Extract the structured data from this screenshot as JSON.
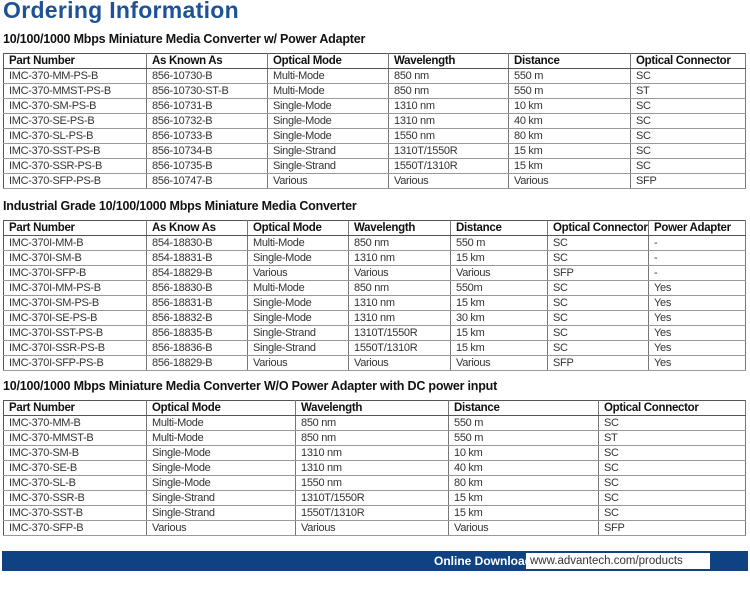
{
  "title": "Ordering Information",
  "tables": [
    {
      "heading": "10/100/1000 Mbps Miniature Media Converter w/ Power Adapter",
      "headers": [
        "Part Number",
        "As Known As",
        "Optical Mode",
        "Wavelength",
        "Distance",
        "Optical Connector"
      ],
      "rows": [
        [
          "IMC-370-MM-PS-B",
          "856-10730-B",
          "Multi-Mode",
          "850 nm",
          "550 m",
          "SC"
        ],
        [
          "IMC-370-MMST-PS-B",
          "856-10730-ST-B",
          "Multi-Mode",
          "850 nm",
          "550 m",
          "ST"
        ],
        [
          "IMC-370-SM-PS-B",
          "856-10731-B",
          "Single-Mode",
          "1310 nm",
          "10 km",
          "SC"
        ],
        [
          "IMC-370-SE-PS-B",
          "856-10732-B",
          "Single-Mode",
          "1310 nm",
          "40 km",
          "SC"
        ],
        [
          "IMC-370-SL-PS-B",
          "856-10733-B",
          "Single-Mode",
          "1550 nm",
          "80 km",
          "SC"
        ],
        [
          "IMC-370-SST-PS-B",
          "856-10734-B",
          "Single-Strand",
          "1310T/1550R",
          "15 km",
          "SC"
        ],
        [
          "IMC-370-SSR-PS-B",
          "856-10735-B",
          "Single-Strand",
          "1550T/1310R",
          "15 km",
          "SC"
        ],
        [
          "IMC-370-SFP-PS-B",
          "856-10747-B",
          "Various",
          "Various",
          "Various",
          "SFP"
        ]
      ]
    },
    {
      "heading": "Industrial Grade 10/100/1000 Mbps Miniature Media Converter",
      "headers": [
        "Part Number",
        "As Know As",
        "Optical Mode",
        "Wavelength",
        "Distance",
        "Optical Connector",
        "Power Adapter"
      ],
      "rows": [
        [
          "IMC-370I-MM-B",
          "854-18830-B",
          "Multi-Mode",
          "850 nm",
          "550 m",
          "SC",
          "-"
        ],
        [
          "IMC-370I-SM-B",
          "854-18831-B",
          "Single-Mode",
          "1310 nm",
          "15 km",
          "SC",
          "-"
        ],
        [
          "IMC-370I-SFP-B",
          "854-18829-B",
          "Various",
          "Various",
          "Various",
          "SFP",
          "-"
        ],
        [
          "IMC-370I-MM-PS-B",
          "856-18830-B",
          "Multi-Mode",
          "850 nm",
          "550m",
          "SC",
          "Yes"
        ],
        [
          "IMC-370I-SM-PS-B",
          "856-18831-B",
          "Single-Mode",
          "1310 nm",
          "15 km",
          "SC",
          "Yes"
        ],
        [
          "IMC-370I-SE-PS-B",
          "856-18832-B",
          "Single-Mode",
          "1310 nm",
          "30 km",
          "SC",
          "Yes"
        ],
        [
          "IMC-370I-SST-PS-B",
          "856-18835-B",
          "Single-Strand",
          "1310T/1550R",
          "15 km",
          "SC",
          "Yes"
        ],
        [
          "IMC-370I-SSR-PS-B",
          "856-18836-B",
          "Single-Strand",
          "1550T/1310R",
          "15 km",
          "SC",
          "Yes"
        ],
        [
          "IMC-370I-SFP-PS-B",
          "856-18829-B",
          "Various",
          "Various",
          "Various",
          "SFP",
          "Yes"
        ]
      ]
    },
    {
      "heading": "10/100/1000 Mbps Miniature Media Converter W/O Power Adapter with DC power input",
      "headers": [
        "Part Number",
        "Optical Mode",
        "Wavelength",
        "Distance",
        "Optical Connector"
      ],
      "rows": [
        [
          "IMC-370-MM-B",
          "Multi-Mode",
          "850 nm",
          "550 m",
          "SC"
        ],
        [
          "IMC-370-MMST-B",
          "Multi-Mode",
          "850 nm",
          "550 m",
          "ST"
        ],
        [
          "IMC-370-SM-B",
          "Single-Mode",
          "1310 nm",
          "10 km",
          "SC"
        ],
        [
          "IMC-370-SE-B",
          "Single-Mode",
          "1310 nm",
          "40 km",
          "SC"
        ],
        [
          "IMC-370-SL-B",
          "Single-Mode",
          "1550 nm",
          "80 km",
          "SC"
        ],
        [
          "IMC-370-SSR-B",
          "Single-Strand",
          "1310T/1550R",
          "15 km",
          "SC"
        ],
        [
          "IMC-370-SST-B",
          "Single-Strand",
          "1550T/1310R",
          "15 km",
          "SC"
        ],
        [
          "IMC-370-SFP-B",
          "Various",
          "Various",
          "Various",
          "SFP"
        ]
      ]
    }
  ],
  "footer": {
    "label": "Online Download",
    "url": "www.advantech.com/products"
  },
  "colors": {
    "title": "#1d5394",
    "footer_bg": "#0e4282"
  }
}
